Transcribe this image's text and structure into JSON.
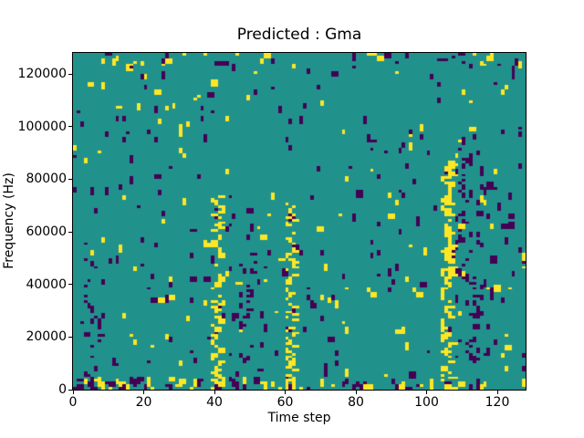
{
  "chart_data": {
    "type": "heatmap",
    "title": "Predicted : Gma",
    "xlabel": "Time step",
    "ylabel": "Frequency (Hz)",
    "x_range": [
      0,
      128
    ],
    "y_range": [
      0,
      128000
    ],
    "x_ticks": [
      0,
      20,
      40,
      60,
      80,
      100,
      120
    ],
    "y_ticks": [
      0,
      20000,
      40000,
      60000,
      80000,
      100000,
      120000
    ],
    "grid": [
      128,
      128
    ],
    "legend_position": "none",
    "grid_lines": false,
    "colors": {
      "low": "#440154",
      "mid": "#21918c",
      "high": "#fde725",
      "frame": "#000000",
      "text": "#000000",
      "figure_background": "#ffffff"
    },
    "pattern": {
      "seed": 7,
      "base_yellow": 0.0065,
      "base_purple": 0.0105,
      "mark_heights": [
        1,
        2,
        2,
        2,
        3
      ],
      "double_width_prob": 0.12,
      "boosts": [
        {
          "t": [
            0,
            127
          ],
          "f": [
            0,
            1
          ],
          "yellow": 0.09,
          "purple": 0.11
        },
        {
          "t": [
            0,
            64
          ],
          "f": [
            0,
            3
          ],
          "yellow": 0.05,
          "purple": 0.06
        },
        {
          "t": [
            0,
            127
          ],
          "f": [
            122,
            127
          ],
          "yellow": 0.012,
          "purple": 0.014
        },
        {
          "t": [
            0,
            40
          ],
          "f": [
            88,
            127
          ],
          "yellow": 0.006,
          "purple": 0.002
        },
        {
          "t": [
            44,
            56
          ],
          "f": [
            5,
            75
          ],
          "yellow": 0.0,
          "purple": 0.028
        },
        {
          "t": [
            63,
            74
          ],
          "f": [
            5,
            55
          ],
          "yellow": 0.0,
          "purple": 0.018
        },
        {
          "t": [
            108,
            118
          ],
          "f": [
            10,
            95
          ],
          "yellow": 0.0,
          "purple": 0.04
        },
        {
          "t": [
            2,
            8
          ],
          "f": [
            0,
            52
          ],
          "yellow": 0.003,
          "purple": 0.03
        },
        {
          "t": [
            116,
            127
          ],
          "f": [
            25,
            80
          ],
          "yellow": 0.004,
          "purple": 0.02
        },
        {
          "t": [
            84,
            100
          ],
          "f": [
            55,
            100
          ],
          "yellow": 0.008,
          "purple": 0.008
        }
      ],
      "damps": [
        {
          "t": [
            42,
            100
          ],
          "f": [
            96,
            118
          ],
          "factor": 0.25
        }
      ],
      "yellow_streaks": [
        {
          "t": 40,
          "f": [
            0,
            73
          ],
          "p": 0.85,
          "max_width": 2
        },
        {
          "t": 61,
          "f": [
            0,
            70
          ],
          "p": 0.85,
          "max_width": 2
        },
        {
          "t": 105,
          "f": [
            0,
            86
          ],
          "p": 0.9,
          "max_width": 3
        }
      ],
      "purple_snakes": [
        {
          "t": 111,
          "f": [
            8,
            92
          ],
          "p": 0.5,
          "spread": 2
        },
        {
          "t": 50,
          "f": [
            5,
            58
          ],
          "p": 0.3,
          "spread": 2
        },
        {
          "t": 5,
          "f": [
            0,
            46
          ],
          "p": 0.35,
          "spread": 2
        }
      ]
    }
  }
}
